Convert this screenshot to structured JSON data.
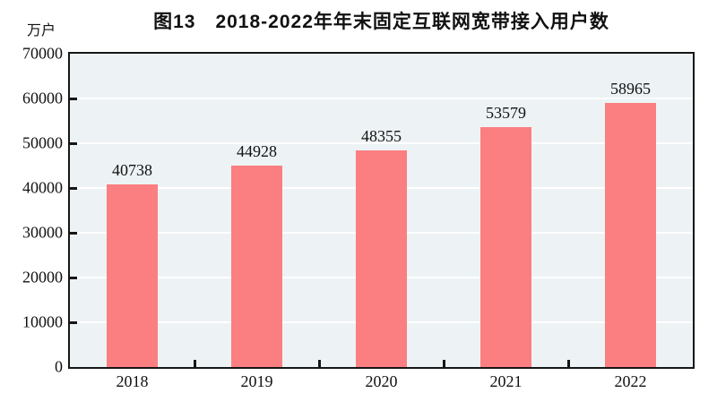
{
  "figure": {
    "title": "图13　2018-2022年年末固定互联网宽带接入用户数",
    "unit_label": "万户"
  },
  "chart_data": {
    "type": "bar",
    "title": "图13　2018-2022年年末固定互联网宽带接入用户数",
    "ylabel_unit": "万户",
    "categories": [
      "2018",
      "2019",
      "2020",
      "2021",
      "2022"
    ],
    "values": [
      40738,
      44928,
      48355,
      53579,
      58965
    ],
    "data_labels": [
      "40738",
      "44928",
      "48355",
      "53579",
      "58965"
    ],
    "ylim": [
      0,
      70000
    ],
    "ytick_step": 10000,
    "ytick_labels": [
      "0",
      "10000",
      "20000",
      "30000",
      "40000",
      "50000",
      "60000",
      "70000"
    ],
    "grid": true,
    "legend": "none",
    "colors": {
      "bar_fill": "#fb7e81",
      "plot_background": "#edf3f5",
      "gridline": "#ffffff",
      "axis_frame": "#161616",
      "text": "#111111"
    }
  }
}
